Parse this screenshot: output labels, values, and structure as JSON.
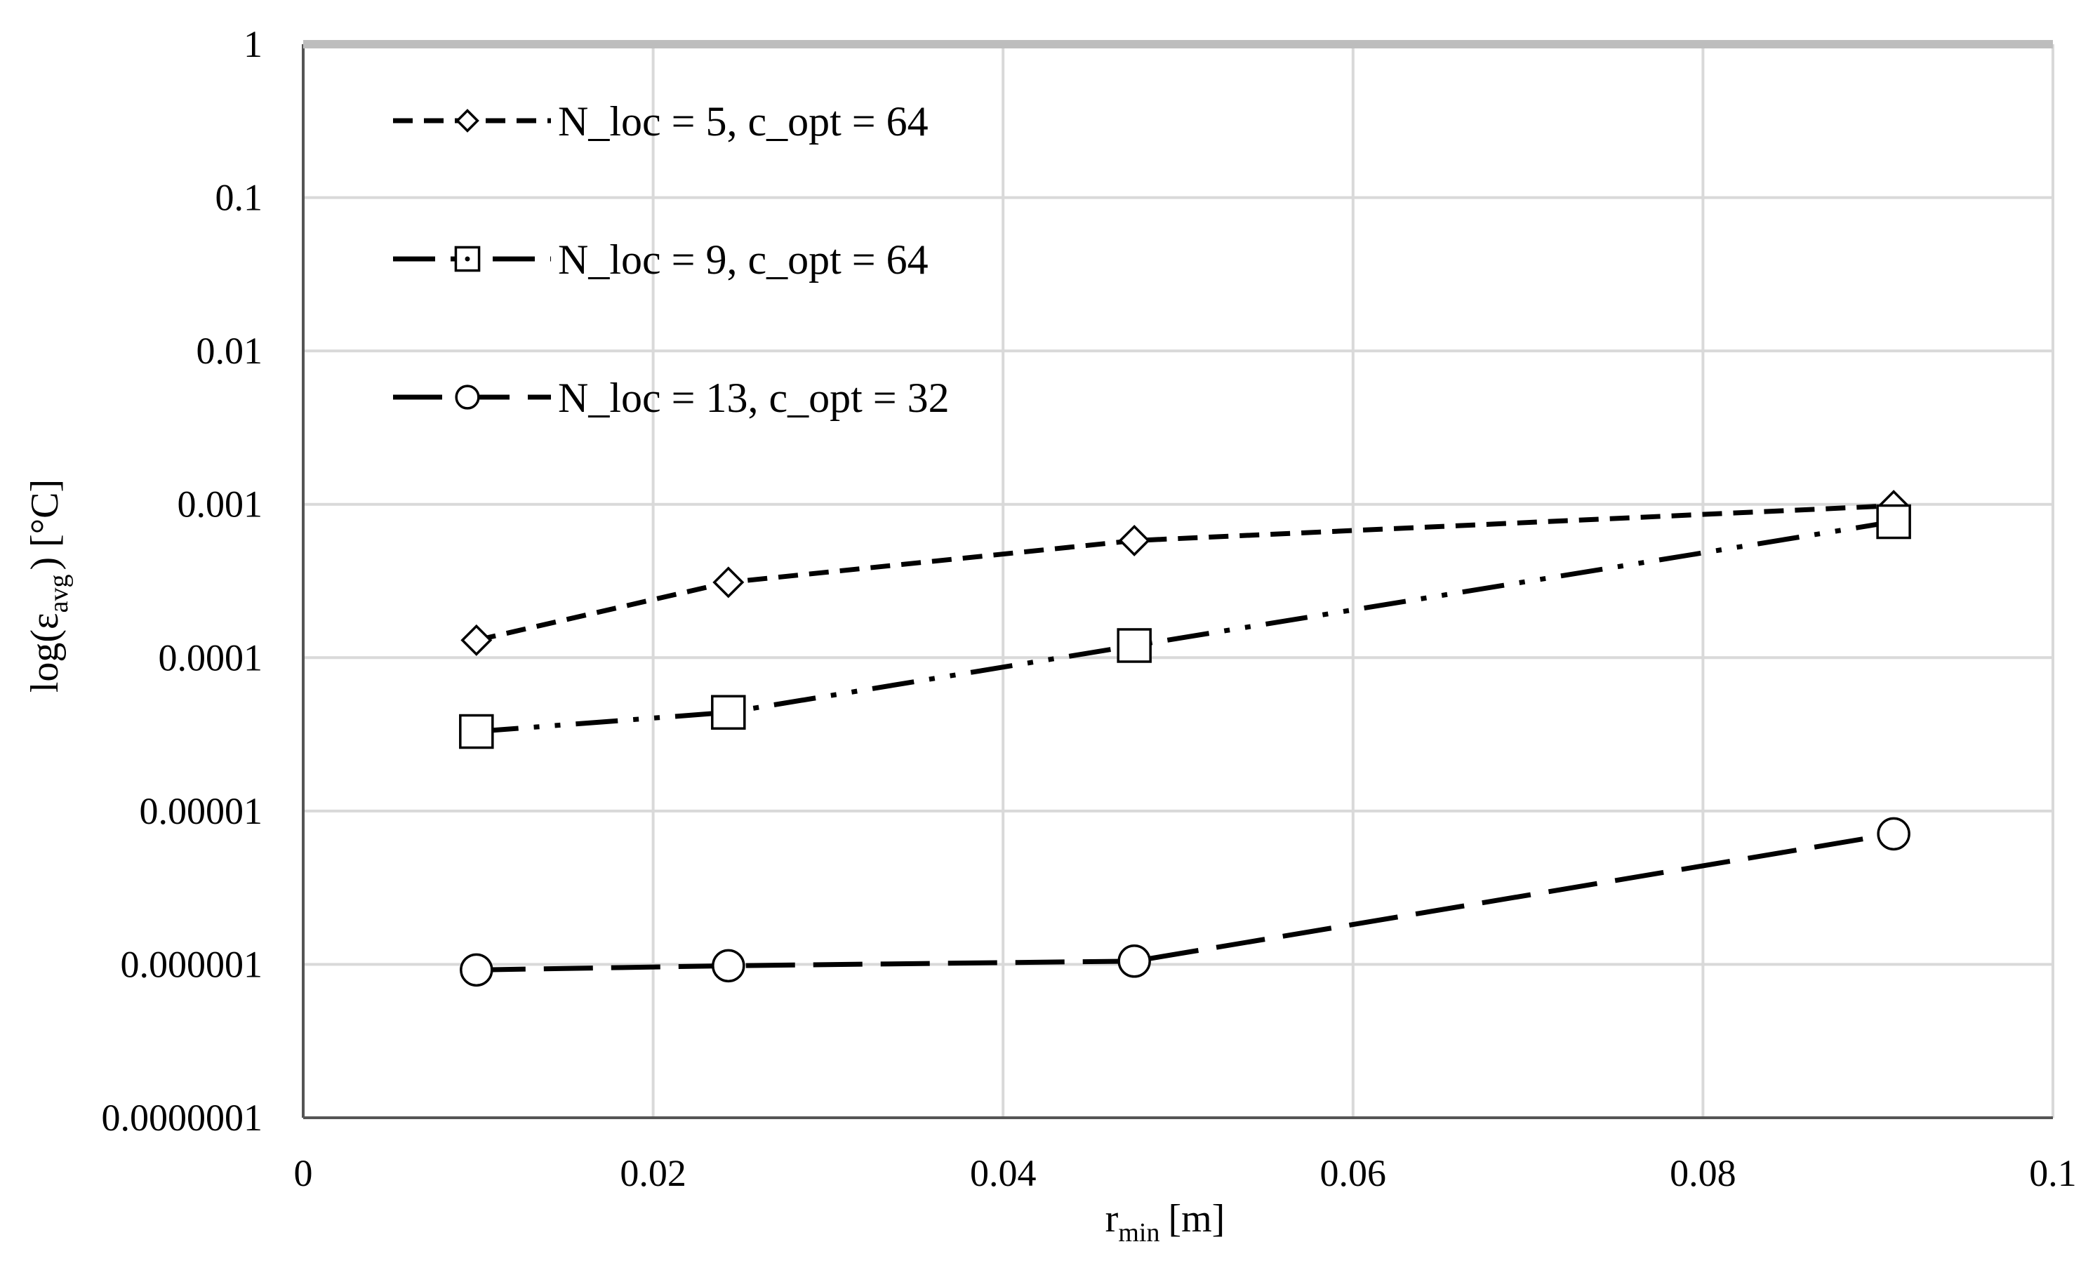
{
  "chart_data": {
    "type": "line",
    "title": "",
    "xlabel": "r",
    "xlabel_sub": "min",
    "xlabel_unit": "[m]",
    "ylabel": "log(ε",
    "ylabel_sub": "avg",
    "ylabel_unit": ") [°C]",
    "xlim": [
      0,
      0.1
    ],
    "ylim": [
      1e-07,
      1
    ],
    "y_scale": "log",
    "x_ticks": [
      0,
      0.02,
      0.04,
      0.06,
      0.08,
      0.1
    ],
    "x_tick_labels": [
      "0",
      "0.02",
      "0.04",
      "0.06",
      "0.08",
      "0.1"
    ],
    "y_ticks": [
      1,
      0.1,
      0.01,
      0.001,
      0.0001,
      1e-05,
      1e-06,
      1e-07
    ],
    "y_tick_labels": [
      "1",
      "0.1",
      "0.01",
      "0.001",
      "0.0001",
      "0.00001",
      "0.000001",
      "0.0000001"
    ],
    "grid": true,
    "legend_position": "top-left",
    "series": [
      {
        "name": "N_loc = 5, c_opt = 64",
        "marker": "diamond",
        "line_style": "short-dash",
        "x": [
          0.0099,
          0.0243,
          0.0475,
          0.0909
        ],
        "y": [
          0.00013,
          0.00031,
          0.00058,
          0.00098
        ]
      },
      {
        "name": "N_loc = 9, c_opt = 64",
        "marker": "square",
        "line_style": "long-dash-dot-dot",
        "x": [
          0.0099,
          0.0243,
          0.0475,
          0.0909
        ],
        "y": [
          3.3e-05,
          4.4e-05,
          0.00012,
          0.00077
        ]
      },
      {
        "name": "N_loc = 13, c_opt = 32",
        "marker": "circle",
        "line_style": "long-dash",
        "x": [
          0.0099,
          0.0243,
          0.0475,
          0.0909
        ],
        "y": [
          9.2e-07,
          9.8e-07,
          1.05e-06,
          7.1e-06
        ]
      }
    ]
  }
}
